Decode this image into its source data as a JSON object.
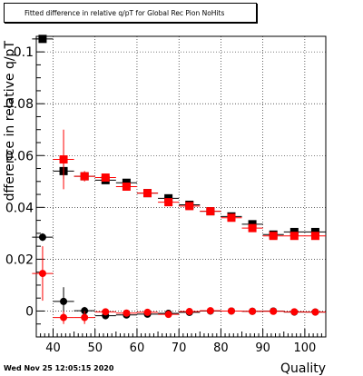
{
  "chart_data": {
    "type": "scatter",
    "title": "Fitted difference in relative q/pT for Global Rec Pion NoHits",
    "xlabel": "Quality",
    "ylabel": "dfference in relative q/pT",
    "xlim": [
      36,
      105
    ],
    "ylim": [
      -0.01,
      0.106
    ],
    "x_ticks": [
      40,
      50,
      60,
      70,
      80,
      90,
      100
    ],
    "x_tick_labels": [
      "40",
      "50",
      "60",
      "70",
      "80",
      "90",
      "100"
    ],
    "y_ticks": [
      0,
      0.02,
      0.04,
      0.06,
      0.08,
      0.1
    ],
    "y_tick_labels": [
      "0",
      "0.02",
      "0.04",
      "0.06",
      "0.08",
      "0.1"
    ],
    "grid": true,
    "legend": "none",
    "timestamp": "Wed Nov 25 12:05:15 2020",
    "series": [
      {
        "color": "#000000",
        "marker": "square",
        "x": [
          37.5,
          42.5,
          47.5,
          52.5,
          57.5,
          62.5,
          67.5,
          72.5,
          77.5,
          82.5,
          87.5,
          92.5,
          97.5,
          102.5
        ],
        "y": [
          0.105,
          0.054,
          0.052,
          0.0505,
          0.0495,
          0.0455,
          0.0435,
          0.041,
          0.0385,
          0.0365,
          0.0335,
          0.0295,
          0.0305,
          0.0305
        ],
        "yerr": [
          0.001,
          0.003,
          0.001,
          0.001,
          0.001,
          0.001,
          0.001,
          0.001,
          0.001,
          0.001,
          0.001,
          0.001,
          0.001,
          0.001
        ]
      },
      {
        "color": "#ff0000",
        "marker": "square",
        "x": [
          37.5,
          42.5,
          47.5,
          52.5,
          57.5,
          62.5,
          67.5,
          72.5,
          77.5,
          82.5,
          87.5,
          92.5,
          97.5,
          102.5
        ],
        "y": [
          null,
          0.0585,
          0.052,
          0.0515,
          0.048,
          0.0455,
          0.042,
          0.0405,
          0.0385,
          0.036,
          0.032,
          0.029,
          0.029,
          0.029
        ],
        "yerr": [
          0,
          0.0115,
          0.002,
          0.0015,
          0.001,
          0.001,
          0.001,
          0.001,
          0.001,
          0.001,
          0.001,
          0.001,
          0.001,
          0.001
        ]
      },
      {
        "color": "#000000",
        "marker": "circle",
        "x": [
          37.5,
          42.5,
          47.5,
          52.5,
          57.5,
          62.5,
          67.5,
          72.5,
          77.5,
          82.5,
          87.5,
          92.5,
          97.5,
          102.5
        ],
        "y": [
          0.0285,
          0.0037,
          0.0001,
          -0.0018,
          -0.0015,
          -0.0012,
          -0.0009,
          -0.0005,
          0.0,
          0.0,
          -0.0001,
          0.0,
          -0.0004,
          -0.0004
        ],
        "yerr": [
          0.0015,
          0.0055,
          0.0015,
          0.0008,
          0.0005,
          0.0005,
          0.0005,
          0.0005,
          0.0005,
          0.0005,
          0.0005,
          0.0005,
          0.0005,
          0.0005
        ]
      },
      {
        "color": "#ff0000",
        "marker": "circle",
        "x": [
          37.5,
          42.5,
          47.5,
          52.5,
          57.5,
          62.5,
          67.5,
          72.5,
          77.5,
          82.5,
          87.5,
          92.5,
          97.5,
          102.5
        ],
        "y": [
          0.0145,
          -0.0025,
          -0.0025,
          -0.0003,
          -0.0008,
          -0.0005,
          -0.0013,
          -0.0002,
          0.0001,
          0.0,
          -0.0001,
          -0.0001,
          -0.0003,
          -0.0004
        ],
        "yerr": [
          0.0105,
          0.0025,
          0.0025,
          0.0008,
          0.0005,
          0.0005,
          0.0005,
          0.0005,
          0.0005,
          0.0005,
          0.0005,
          0.0005,
          0.0005,
          0.0005
        ]
      }
    ]
  }
}
